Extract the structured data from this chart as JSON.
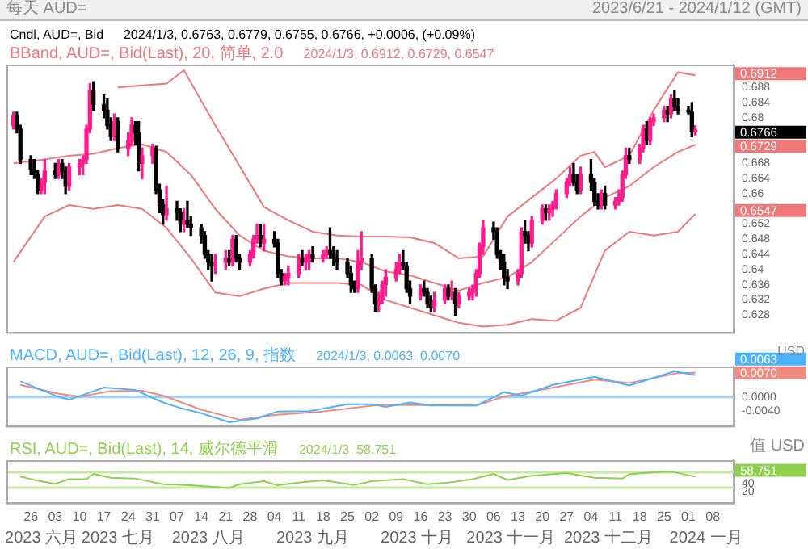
{
  "chart_data": [
    {
      "type": "candlestick",
      "title": "每天 AUD=",
      "subtitle": "2023/6/21 - 2024/1/12 (GMT)",
      "tick_labels": "y",
      "xlim": [
        "2023-06-19",
        "2024-01-14"
      ],
      "ylim": [
        0.6235,
        0.694
      ],
      "yticks": [
        0.628,
        0.632,
        0.636,
        0.64,
        0.644,
        0.648,
        0.652,
        0.66,
        0.664,
        0.668,
        0.68,
        0.684,
        0.688
      ],
      "colors": [
        "#ff1a8c",
        "#000000",
        "#000000",
        "#000000",
        "#000000",
        "#000000",
        "#ff1a8c",
        "#ff1a8c",
        "#000000",
        "#ff1a8c",
        "#000000",
        "#000000",
        "#ff1a8c",
        "#ff1a8c",
        "#ff1a8c",
        "#ff1a8c",
        "#ff1a8c",
        "#000000",
        "#000000",
        "#000000",
        "#000000",
        "#ff1a8c",
        "#000000",
        "#ff1a8c",
        "#ff1a8c",
        "#000000",
        "#000000",
        "#ff1a8c",
        "#ff1a8c",
        "#000000",
        "#000000",
        "#000000",
        "#ff1a8c",
        "#000000",
        "#000000",
        "#ff1a8c",
        "#000000",
        "#000000",
        "#000000",
        "#000000",
        "#000000",
        "#000000",
        "#ff1a8c",
        "#ff1a8c",
        "#000000",
        "#ff1a8c",
        "#000000",
        "#000000",
        "#ff1a8c",
        "#ff1a8c",
        "#ff1a8c",
        "#000000",
        "#ff1a8c",
        "#000000",
        "#000000",
        "#000000",
        "#ff1a8c",
        "#ff1a8c",
        "#ff1a8c",
        "#000000",
        "#ff1a8c",
        "#ff1a8c",
        "#000000",
        "#ff1a8c",
        "#ff1a8c",
        "#000000",
        "#000000",
        "#000000",
        "#000000",
        "#000000",
        "#000000",
        "#ff1a8c",
        "#ff1a8c",
        "#000000",
        "#000000",
        "#ff1a8c",
        "#ff1a8c",
        "#ff1a8c",
        "#ff1a8c",
        "#ff1a8c",
        "#000000",
        "#000000",
        "#000000",
        "#ff1a8c",
        "#000000",
        "#000000",
        "#000000",
        "#ff1a8c",
        "#ff1a8c",
        "#000000",
        "#ff1a8c",
        "#000000",
        "#ff1a8c",
        "#ff1a8c",
        "#ff1a8c",
        "#ff1a8c",
        "#ff1a8c",
        "#ff1a8c",
        "#000000",
        "#000000",
        "#000000",
        "#000000",
        "#000000",
        "#ff1a8c",
        "#ff1a8c",
        "#000000",
        "#000000",
        "#ff1a8c",
        "#ff1a8c",
        "#000000",
        "#ff1a8c",
        "#ff1a8c",
        "#ff1a8c",
        "#ff1a8c",
        "#ff1a8c",
        "#000000",
        "#000000",
        "#ff1a8c",
        "#000000",
        "#000000",
        "#000000",
        "#ff1a8c",
        "#000000",
        "#ff1a8c",
        "#ff1a8c",
        "#ff1a8c",
        "#ff1a8c",
        "#000000",
        "#ff1a8c",
        "#ff1a8c",
        "#000000",
        "#ff1a8c",
        "#ff1a8c",
        "#ff1a8c",
        "#000000",
        "#ff1a8c",
        "#000000",
        "#000000",
        "#000000",
        "#000000",
        "#ff1a8c"
      ],
      "x": [
        "2023-06-21",
        "2023-06-22",
        "2023-06-23",
        "2023-06-26",
        "2023-06-27",
        "2023-06-28",
        "2023-06-29",
        "2023-06-30",
        "2023-07-03",
        "2023-07-04",
        "2023-07-05",
        "2023-07-06",
        "2023-07-07",
        "2023-07-10",
        "2023-07-11",
        "2023-07-12",
        "2023-07-13",
        "2023-07-14",
        "2023-07-17",
        "2023-07-18",
        "2023-07-19",
        "2023-07-20",
        "2023-07-21",
        "2023-07-24",
        "2023-07-25",
        "2023-07-26",
        "2023-07-27",
        "2023-07-28",
        "2023-07-31",
        "2023-08-01",
        "2023-08-02",
        "2023-08-03",
        "2023-08-04",
        "2023-08-07",
        "2023-08-08",
        "2023-08-09",
        "2023-08-10",
        "2023-08-11",
        "2023-08-14",
        "2023-08-15",
        "2023-08-16",
        "2023-08-17",
        "2023-08-18",
        "2023-08-21",
        "2023-08-22",
        "2023-08-23",
        "2023-08-24",
        "2023-08-25",
        "2023-08-28",
        "2023-08-29",
        "2023-08-30",
        "2023-08-31",
        "2023-09-01",
        "2023-09-04",
        "2023-09-05",
        "2023-09-06",
        "2023-09-07",
        "2023-09-08",
        "2023-09-11",
        "2023-09-12",
        "2023-09-13",
        "2023-09-14",
        "2023-09-15",
        "2023-09-18",
        "2023-09-19",
        "2023-09-20",
        "2023-09-21",
        "2023-09-22",
        "2023-09-25",
        "2023-09-26",
        "2023-09-27",
        "2023-09-28",
        "2023-09-29",
        "2023-10-02",
        "2023-10-03",
        "2023-10-04",
        "2023-10-05",
        "2023-10-06",
        "2023-10-09",
        "2023-10-10",
        "2023-10-11",
        "2023-10-12",
        "2023-10-13",
        "2023-10-16",
        "2023-10-17",
        "2023-10-18",
        "2023-10-19",
        "2023-10-20",
        "2023-10-23",
        "2023-10-24",
        "2023-10-25",
        "2023-10-26",
        "2023-10-27",
        "2023-10-30",
        "2023-10-31",
        "2023-11-01",
        "2023-11-02",
        "2023-11-03",
        "2023-11-06",
        "2023-11-07",
        "2023-11-08",
        "2023-11-09",
        "2023-11-10",
        "2023-11-13",
        "2023-11-14",
        "2023-11-15",
        "2023-11-16",
        "2023-11-17",
        "2023-11-20",
        "2023-11-21",
        "2023-11-22",
        "2023-11-23",
        "2023-11-24",
        "2023-11-27",
        "2023-11-28",
        "2023-11-29",
        "2023-11-30",
        "2023-12-01",
        "2023-12-04",
        "2023-12-05",
        "2023-12-06",
        "2023-12-07",
        "2023-12-08",
        "2023-12-11",
        "2023-12-12",
        "2023-12-13",
        "2023-12-14",
        "2023-12-15",
        "2023-12-18",
        "2023-12-19",
        "2023-12-20",
        "2023-12-21",
        "2023-12-22",
        "2023-12-25",
        "2023-12-26",
        "2023-12-27",
        "2023-12-28",
        "2023-12-29",
        "2024-01-01",
        "2024-01-02",
        "2024-01-03"
      ],
      "ohlc": [
        [
          0.678,
          0.6815,
          0.677,
          0.6805
        ],
        [
          0.6805,
          0.6815,
          0.676,
          0.677
        ],
        [
          0.677,
          0.678,
          0.668,
          0.669
        ],
        [
          0.669,
          0.67,
          0.665,
          0.6665
        ],
        [
          0.6665,
          0.669,
          0.664,
          0.665
        ],
        [
          0.665,
          0.666,
          0.66,
          0.661
        ],
        [
          0.661,
          0.664,
          0.66,
          0.663
        ],
        [
          0.663,
          0.669,
          0.66,
          0.666
        ],
        [
          0.666,
          0.668,
          0.664,
          0.665
        ],
        [
          0.665,
          0.669,
          0.664,
          0.668
        ],
        [
          0.668,
          0.669,
          0.664,
          0.666
        ],
        [
          0.666,
          0.667,
          0.66,
          0.662
        ],
        [
          0.662,
          0.668,
          0.661,
          0.667
        ],
        [
          0.667,
          0.669,
          0.665,
          0.668
        ],
        [
          0.668,
          0.67,
          0.665,
          0.669
        ],
        [
          0.669,
          0.678,
          0.668,
          0.677
        ],
        [
          0.677,
          0.689,
          0.676,
          0.687
        ],
        [
          0.687,
          0.6895,
          0.682,
          0.6835
        ],
        [
          0.6835,
          0.686,
          0.68,
          0.682
        ],
        [
          0.682,
          0.685,
          0.677,
          0.678
        ],
        [
          0.678,
          0.68,
          0.674,
          0.675
        ],
        [
          0.675,
          0.681,
          0.674,
          0.679
        ],
        [
          0.679,
          0.68,
          0.671,
          0.672
        ],
        [
          0.672,
          0.676,
          0.67,
          0.674
        ],
        [
          0.674,
          0.68,
          0.673,
          0.678
        ],
        [
          0.678,
          0.679,
          0.673,
          0.676
        ],
        [
          0.676,
          0.679,
          0.666,
          0.668
        ],
        [
          0.668,
          0.672,
          0.664,
          0.67
        ],
        [
          0.67,
          0.673,
          0.668,
          0.672
        ],
        [
          0.672,
          0.6725,
          0.66,
          0.661
        ],
        [
          0.661,
          0.6625,
          0.655,
          0.657
        ],
        [
          0.657,
          0.6585,
          0.652,
          0.6545
        ],
        [
          0.6545,
          0.662,
          0.653,
          0.656
        ],
        [
          0.656,
          0.658,
          0.653,
          0.655
        ],
        [
          0.655,
          0.656,
          0.65,
          0.652
        ],
        [
          0.652,
          0.656,
          0.65,
          0.653
        ],
        [
          0.653,
          0.658,
          0.651,
          0.652
        ],
        [
          0.652,
          0.654,
          0.649,
          0.651
        ],
        [
          0.651,
          0.652,
          0.647,
          0.649
        ],
        [
          0.649,
          0.65,
          0.643,
          0.644
        ],
        [
          0.644,
          0.645,
          0.64,
          0.642
        ],
        [
          0.642,
          0.644,
          0.637,
          0.641
        ],
        [
          0.641,
          0.644,
          0.639,
          0.642
        ],
        [
          0.642,
          0.645,
          0.64,
          0.643
        ],
        [
          0.643,
          0.645,
          0.641,
          0.642
        ],
        [
          0.642,
          0.649,
          0.641,
          0.648
        ],
        [
          0.648,
          0.649,
          0.642,
          0.643
        ],
        [
          0.643,
          0.644,
          0.64,
          0.642
        ],
        [
          0.642,
          0.645,
          0.641,
          0.644
        ],
        [
          0.644,
          0.649,
          0.643,
          0.648
        ],
        [
          0.648,
          0.652,
          0.647,
          0.649
        ],
        [
          0.649,
          0.652,
          0.646,
          0.647
        ],
        [
          0.647,
          0.652,
          0.645,
          0.648
        ],
        [
          0.648,
          0.65,
          0.646,
          0.647
        ],
        [
          0.647,
          0.648,
          0.638,
          0.639
        ],
        [
          0.639,
          0.64,
          0.636,
          0.637
        ],
        [
          0.637,
          0.639,
          0.636,
          0.638
        ],
        [
          0.638,
          0.641,
          0.636,
          0.639
        ],
        [
          0.639,
          0.644,
          0.638,
          0.643
        ],
        [
          0.643,
          0.645,
          0.641,
          0.642
        ],
        [
          0.642,
          0.644,
          0.64,
          0.6425
        ],
        [
          0.642,
          0.645,
          0.64,
          0.644
        ],
        [
          0.644,
          0.646,
          0.642,
          0.643
        ],
        [
          0.643,
          0.645,
          0.642,
          0.644
        ],
        [
          0.644,
          0.646,
          0.643,
          0.645
        ],
        [
          0.645,
          0.651,
          0.643,
          0.644
        ],
        [
          0.644,
          0.646,
          0.641,
          0.643
        ],
        [
          0.643,
          0.645,
          0.64,
          0.642
        ],
        [
          0.642,
          0.643,
          0.638,
          0.639
        ],
        [
          0.639,
          0.641,
          0.634,
          0.636
        ],
        [
          0.636,
          0.637,
          0.634,
          0.635
        ],
        [
          0.635,
          0.645,
          0.634,
          0.642
        ],
        [
          0.642,
          0.65,
          0.64,
          0.643
        ],
        [
          0.643,
          0.644,
          0.634,
          0.635
        ],
        [
          0.635,
          0.636,
          0.629,
          0.631
        ],
        [
          0.631,
          0.634,
          0.629,
          0.632
        ],
        [
          0.632,
          0.637,
          0.631,
          0.636
        ],
        [
          0.636,
          0.64,
          0.633,
          0.638
        ],
        [
          0.638,
          0.642,
          0.637,
          0.64
        ],
        [
          0.64,
          0.644,
          0.639,
          0.642
        ],
        [
          0.642,
          0.645,
          0.64,
          0.641
        ],
        [
          0.641,
          0.642,
          0.634,
          0.635
        ],
        [
          0.635,
          0.637,
          0.631,
          0.633
        ],
        [
          0.633,
          0.636,
          0.632,
          0.635
        ],
        [
          0.635,
          0.637,
          0.633,
          0.634
        ],
        [
          0.634,
          0.635,
          0.63,
          0.631
        ],
        [
          0.631,
          0.633,
          0.629,
          0.63
        ],
        [
          0.63,
          0.634,
          0.629,
          0.632
        ],
        [
          0.632,
          0.636,
          0.631,
          0.635
        ],
        [
          0.635,
          0.636,
          0.632,
          0.633
        ],
        [
          0.633,
          0.637,
          0.632,
          0.634
        ],
        [
          0.634,
          0.635,
          0.628,
          0.631
        ],
        [
          0.631,
          0.634,
          0.63,
          0.633
        ],
        [
          0.633,
          0.635,
          0.632,
          0.634
        ],
        [
          0.634,
          0.636,
          0.632,
          0.635
        ],
        [
          0.635,
          0.64,
          0.633,
          0.639
        ],
        [
          0.639,
          0.647,
          0.638,
          0.646
        ],
        [
          0.646,
          0.653,
          0.644,
          0.651
        ],
        [
          0.651,
          0.6525,
          0.648,
          0.65
        ],
        [
          0.65,
          0.651,
          0.643,
          0.644
        ],
        [
          0.644,
          0.645,
          0.64,
          0.642
        ],
        [
          0.642,
          0.644,
          0.636,
          0.638
        ],
        [
          0.638,
          0.64,
          0.635,
          0.637
        ],
        [
          0.637,
          0.64,
          0.636,
          0.639
        ],
        [
          0.639,
          0.651,
          0.638,
          0.65
        ],
        [
          0.65,
          0.653,
          0.647,
          0.649
        ],
        [
          0.649,
          0.65,
          0.645,
          0.647
        ],
        [
          0.647,
          0.654,
          0.646,
          0.653
        ],
        [
          0.653,
          0.657,
          0.652,
          0.656
        ],
        [
          0.656,
          0.657,
          0.653,
          0.655
        ],
        [
          0.655,
          0.657,
          0.653,
          0.656
        ],
        [
          0.656,
          0.658,
          0.654,
          0.657
        ],
        [
          0.657,
          0.661,
          0.656,
          0.66
        ],
        [
          0.66,
          0.664,
          0.659,
          0.663
        ],
        [
          0.663,
          0.667,
          0.662,
          0.665
        ],
        [
          0.665,
          0.668,
          0.662,
          0.663
        ],
        [
          0.663,
          0.665,
          0.66,
          0.661
        ],
        [
          0.661,
          0.667,
          0.66,
          0.665
        ],
        [
          0.665,
          0.669,
          0.661,
          0.663
        ],
        [
          0.663,
          0.664,
          0.657,
          0.658
        ],
        [
          0.658,
          0.66,
          0.656,
          0.657
        ],
        [
          0.657,
          0.661,
          0.656,
          0.66
        ],
        [
          0.66,
          0.662,
          0.656,
          0.657
        ],
        [
          0.657,
          0.659,
          0.656,
          0.658
        ],
        [
          0.658,
          0.661,
          0.657,
          0.659
        ],
        [
          0.659,
          0.666,
          0.658,
          0.665
        ],
        [
          0.665,
          0.672,
          0.664,
          0.67
        ],
        [
          0.67,
          0.672,
          0.668,
          0.669
        ],
        [
          0.669,
          0.673,
          0.668,
          0.672
        ],
        [
          0.672,
          0.678,
          0.671,
          0.677
        ],
        [
          0.677,
          0.679,
          0.673,
          0.674
        ],
        [
          0.674,
          0.68,
          0.673,
          0.679
        ],
        [
          0.679,
          0.681,
          0.678,
          0.68
        ],
        [
          0.68,
          0.683,
          0.679,
          0.682
        ],
        [
          0.682,
          0.683,
          0.679,
          0.681
        ],
        [
          0.681,
          0.686,
          0.68,
          0.685
        ],
        [
          0.685,
          0.6871,
          0.682,
          0.683
        ],
        [
          0.683,
          0.685,
          0.681,
          0.682
        ],
        [
          0.682,
          0.683,
          0.681,
          0.6815
        ],
        [
          0.6815,
          0.684,
          0.675,
          0.6763
        ],
        [
          0.6763,
          0.6779,
          0.6755,
          0.6766
        ]
      ],
      "series": [
        {
          "type": "line",
          "color": "#f07878",
          "x": [
            "2023-07-21",
            "2023-07-28",
            "2023-08-04",
            "2023-08-09",
            "2023-08-18",
            "2023-08-25",
            "2023-09-01",
            "2023-09-08",
            "2023-09-15",
            "2023-09-22",
            "2023-09-29",
            "2023-10-06",
            "2023-10-13",
            "2023-10-20",
            "2023-10-27",
            "2023-11-03",
            "2023-11-10",
            "2023-11-17",
            "2023-11-24",
            "2023-12-01",
            "2023-12-05",
            "2023-12-08",
            "2023-12-15",
            "2023-12-22",
            "2023-12-29",
            "2024-01-03"
          ],
          "values": [
            0.688,
            0.6885,
            0.689,
            0.6925,
            0.678,
            0.6673,
            0.6565,
            0.653,
            0.65,
            0.649,
            0.6487,
            0.6487,
            0.6485,
            0.647,
            0.643,
            0.6435,
            0.654,
            0.659,
            0.664,
            0.67,
            0.671,
            0.667,
            0.67,
            0.682,
            0.692,
            0.6912
          ]
        },
        {
          "type": "line",
          "color": "#f07878",
          "x": [
            "2023-06-21",
            "2023-06-30",
            "2023-07-07",
            "2023-07-14",
            "2023-07-21",
            "2023-07-28",
            "2023-08-04",
            "2023-08-11",
            "2023-08-18",
            "2023-08-25",
            "2023-09-01",
            "2023-09-08",
            "2023-09-15",
            "2023-09-22",
            "2023-09-29",
            "2023-10-06",
            "2023-10-13",
            "2023-10-20",
            "2023-10-27",
            "2023-11-03",
            "2023-11-10",
            "2023-11-17",
            "2023-11-24",
            "2023-12-01",
            "2023-12-08",
            "2023-12-15",
            "2023-12-22",
            "2023-12-29",
            "2024-01-03"
          ],
          "values": [
            0.668,
            0.669,
            0.67,
            0.6705,
            0.672,
            0.673,
            0.671,
            0.665,
            0.656,
            0.649,
            0.645,
            0.6435,
            0.643,
            0.643,
            0.642,
            0.6395,
            0.6385,
            0.6365,
            0.6345,
            0.6365,
            0.638,
            0.642,
            0.648,
            0.654,
            0.659,
            0.662,
            0.667,
            0.671,
            0.6729
          ]
        },
        {
          "type": "line",
          "color": "#f07878",
          "x": [
            "2023-06-21",
            "2023-06-30",
            "2023-07-07",
            "2023-07-14",
            "2023-07-21",
            "2023-07-28",
            "2023-08-04",
            "2023-08-11",
            "2023-08-18",
            "2023-08-25",
            "2023-09-01",
            "2023-09-08",
            "2023-09-15",
            "2023-09-22",
            "2023-09-29",
            "2023-10-06",
            "2023-10-13",
            "2023-10-20",
            "2023-10-27",
            "2023-11-03",
            "2023-11-10",
            "2023-11-17",
            "2023-11-24",
            "2023-12-01",
            "2023-12-08",
            "2023-12-15",
            "2023-12-22",
            "2023-12-29",
            "2024-01-03"
          ],
          "values": [
            0.642,
            0.654,
            0.657,
            0.656,
            0.657,
            0.656,
            0.651,
            0.643,
            0.634,
            0.633,
            0.635,
            0.6365,
            0.6365,
            0.6365,
            0.636,
            0.632,
            0.63,
            0.628,
            0.626,
            0.625,
            0.6255,
            0.627,
            0.6265,
            0.63,
            0.645,
            0.65,
            0.649,
            0.65,
            0.6547
          ]
        }
      ],
      "annotations": [
        "Cndl, AUD=, Bid",
        "2024/1/3, 0.6763, 0.6779, 0.6755, 0.6766, +0.0006, (+0.09%)",
        "BBand, AUD=, Bid(Last), 20, 简单, 2.0",
        "2024/1/3, 0.6912, 0.6729, 0.6547",
        "0.6912",
        "0.6766",
        "0.6729",
        "0.6547"
      ]
    },
    {
      "type": "line",
      "tick_labels": "y",
      "ylabel": "USD",
      "xlim": [
        "2023-06-19",
        "2024-01-14"
      ],
      "ylim": [
        -0.0084,
        0.0088
      ],
      "yticks": [
        {
          "value": 0,
          "label": "0.0000"
        },
        {
          "value": -0.004,
          "label": "-0.0040"
        }
      ],
      "ref_lines": [
        {
          "axis": "y",
          "value": 0,
          "color": "#9fd0f5"
        }
      ],
      "series": [
        {
          "color": "#4db3ff",
          "x": [
            "2023-06-23",
            "2023-07-04",
            "2023-07-07",
            "2023-07-17",
            "2023-07-26",
            "2023-08-03",
            "2023-08-08",
            "2023-08-14",
            "2023-08-22",
            "2023-08-30",
            "2023-09-05",
            "2023-09-14",
            "2023-09-25",
            "2023-10-02",
            "2023-10-06",
            "2023-10-13",
            "2023-10-19",
            "2023-11-01",
            "2023-11-09",
            "2023-11-14",
            "2023-11-23",
            "2023-12-05",
            "2023-12-15",
            "2023-12-28",
            "2024-01-03"
          ],
          "values": [
            0.0045,
            0.0,
            -0.0008,
            0.0027,
            0.002,
            -0.0016,
            -0.0032,
            -0.0047,
            -0.0073,
            -0.0062,
            -0.0042,
            -0.0041,
            -0.0021,
            -0.0021,
            -0.0029,
            -0.0016,
            -0.0025,
            -0.0025,
            0.0014,
            0.0004,
            0.0035,
            0.0058,
            0.0033,
            0.0074,
            0.0063
          ]
        },
        {
          "color": "#f08a80",
          "x": [
            "2023-06-23",
            "2023-07-04",
            "2023-07-10",
            "2023-07-19",
            "2023-07-28",
            "2023-08-03",
            "2023-08-14",
            "2023-08-25",
            "2023-09-04",
            "2023-09-18",
            "2023-10-04",
            "2023-11-01",
            "2023-11-09",
            "2023-11-22",
            "2023-12-05",
            "2023-12-15",
            "2023-12-29",
            "2024-01-03"
          ],
          "values": [
            0.0035,
            0.0009,
            0.0001,
            0.0017,
            0.0018,
            0.0004,
            -0.0037,
            -0.0066,
            -0.0052,
            -0.0042,
            -0.0023,
            -0.0025,
            0.0001,
            0.0025,
            0.005,
            0.004,
            0.0069,
            0.007
          ]
        }
      ],
      "annotations": [
        "MACD, AUD=, Bid(Last), 12, 26, 9, 指数",
        "2024/1/3, 0.0063, 0.0070",
        "0.0070",
        "0.0063"
      ]
    },
    {
      "type": "line",
      "ylabel": "值 USD",
      "xlim": [
        "2023-06-19",
        "2024-01-14"
      ],
      "x2lim": [
        "2023-06-19",
        "2024-01-14"
      ],
      "x2ticks": [
        {
          "value": "2023-06-29",
          "label": "2023 六月"
        },
        {
          "value": "2023-07-21",
          "label": "2023 七月"
        },
        {
          "value": "2023-08-16",
          "label": "2023 八月"
        },
        {
          "value": "2023-09-15",
          "label": "2023 九月"
        },
        {
          "value": "2023-10-15",
          "label": "2023 十月"
        },
        {
          "value": "2023-11-11",
          "label": "2023 十一月"
        },
        {
          "value": "2023-12-09",
          "label": "2023 十二月"
        },
        {
          "value": "2024-01-06",
          "label": "2024 一月"
        }
      ],
      "ylim": [
        -10,
        102
      ],
      "yticks": [
        20,
        40
      ],
      "xticks": [
        {
          "value": "2023-06-26",
          "label": "26"
        },
        {
          "value": "2023-07-03",
          "label": "03"
        },
        {
          "value": "2023-07-10",
          "label": "10"
        },
        {
          "value": "2023-07-17",
          "label": "17"
        },
        {
          "value": "2023-07-24",
          "label": "24"
        },
        {
          "value": "2023-07-31",
          "label": "31"
        },
        {
          "value": "2023-08-07",
          "label": "07"
        },
        {
          "value": "2023-08-14",
          "label": "14"
        },
        {
          "value": "2023-08-21",
          "label": "21"
        },
        {
          "value": "2023-08-28",
          "label": "28"
        },
        {
          "value": "2023-09-04",
          "label": "04"
        },
        {
          "value": "2023-09-11",
          "label": "11"
        },
        {
          "value": "2023-09-18",
          "label": "18"
        },
        {
          "value": "2023-09-25",
          "label": "25"
        },
        {
          "value": "2023-10-02",
          "label": "02"
        },
        {
          "value": "2023-10-09",
          "label": "09"
        },
        {
          "value": "2023-10-16",
          "label": "16"
        },
        {
          "value": "2023-10-23",
          "label": "23"
        },
        {
          "value": "2023-10-30",
          "label": "30"
        },
        {
          "value": "2023-11-06",
          "label": "06"
        },
        {
          "value": "2023-11-13",
          "label": "13"
        },
        {
          "value": "2023-11-20",
          "label": "20"
        },
        {
          "value": "2023-11-27",
          "label": "27"
        },
        {
          "value": "2023-12-04",
          "label": "04"
        },
        {
          "value": "2023-12-11",
          "label": "11"
        },
        {
          "value": "2023-12-18",
          "label": "18"
        },
        {
          "value": "2023-12-25",
          "label": "25"
        },
        {
          "value": "2024-01-01",
          "label": "01"
        },
        {
          "value": "2024-01-08",
          "label": "08"
        }
      ],
      "ref_lines": [
        {
          "axis": "y",
          "value": 70,
          "color": "#c6e8a0"
        },
        {
          "axis": "y",
          "value": 30,
          "color": "#c6e8a0"
        }
      ],
      "series": [
        {
          "color": "#8fd14f",
          "x": [
            "2023-06-23",
            "2023-06-27",
            "2023-07-03",
            "2023-07-07",
            "2023-07-12",
            "2023-07-14",
            "2023-07-19",
            "2023-07-26",
            "2023-08-03",
            "2023-08-11",
            "2023-08-22",
            "2023-08-25",
            "2023-09-01",
            "2023-09-05",
            "2023-09-12",
            "2023-09-18",
            "2023-09-27",
            "2023-10-02",
            "2023-10-11",
            "2023-10-18",
            "2023-10-24",
            "2023-10-31",
            "2023-11-06",
            "2023-11-10",
            "2023-11-17",
            "2023-11-27",
            "2023-12-05",
            "2023-12-13",
            "2023-12-15",
            "2023-12-22",
            "2023-12-27",
            "2024-01-03"
          ],
          "values": [
            59,
            50,
            40,
            52,
            52,
            66,
            56,
            54,
            39,
            36,
            29,
            39,
            47,
            36,
            44,
            49,
            37,
            47,
            52,
            39,
            43,
            52,
            66,
            50,
            61,
            68,
            56,
            54,
            65,
            70,
            72,
            58.751
          ]
        }
      ],
      "annotations": [
        "RSI, AUD=, Bid(Last), 14, 威尔德平滑",
        "2024/1/3, 58.751",
        "58.751"
      ]
    }
  ]
}
